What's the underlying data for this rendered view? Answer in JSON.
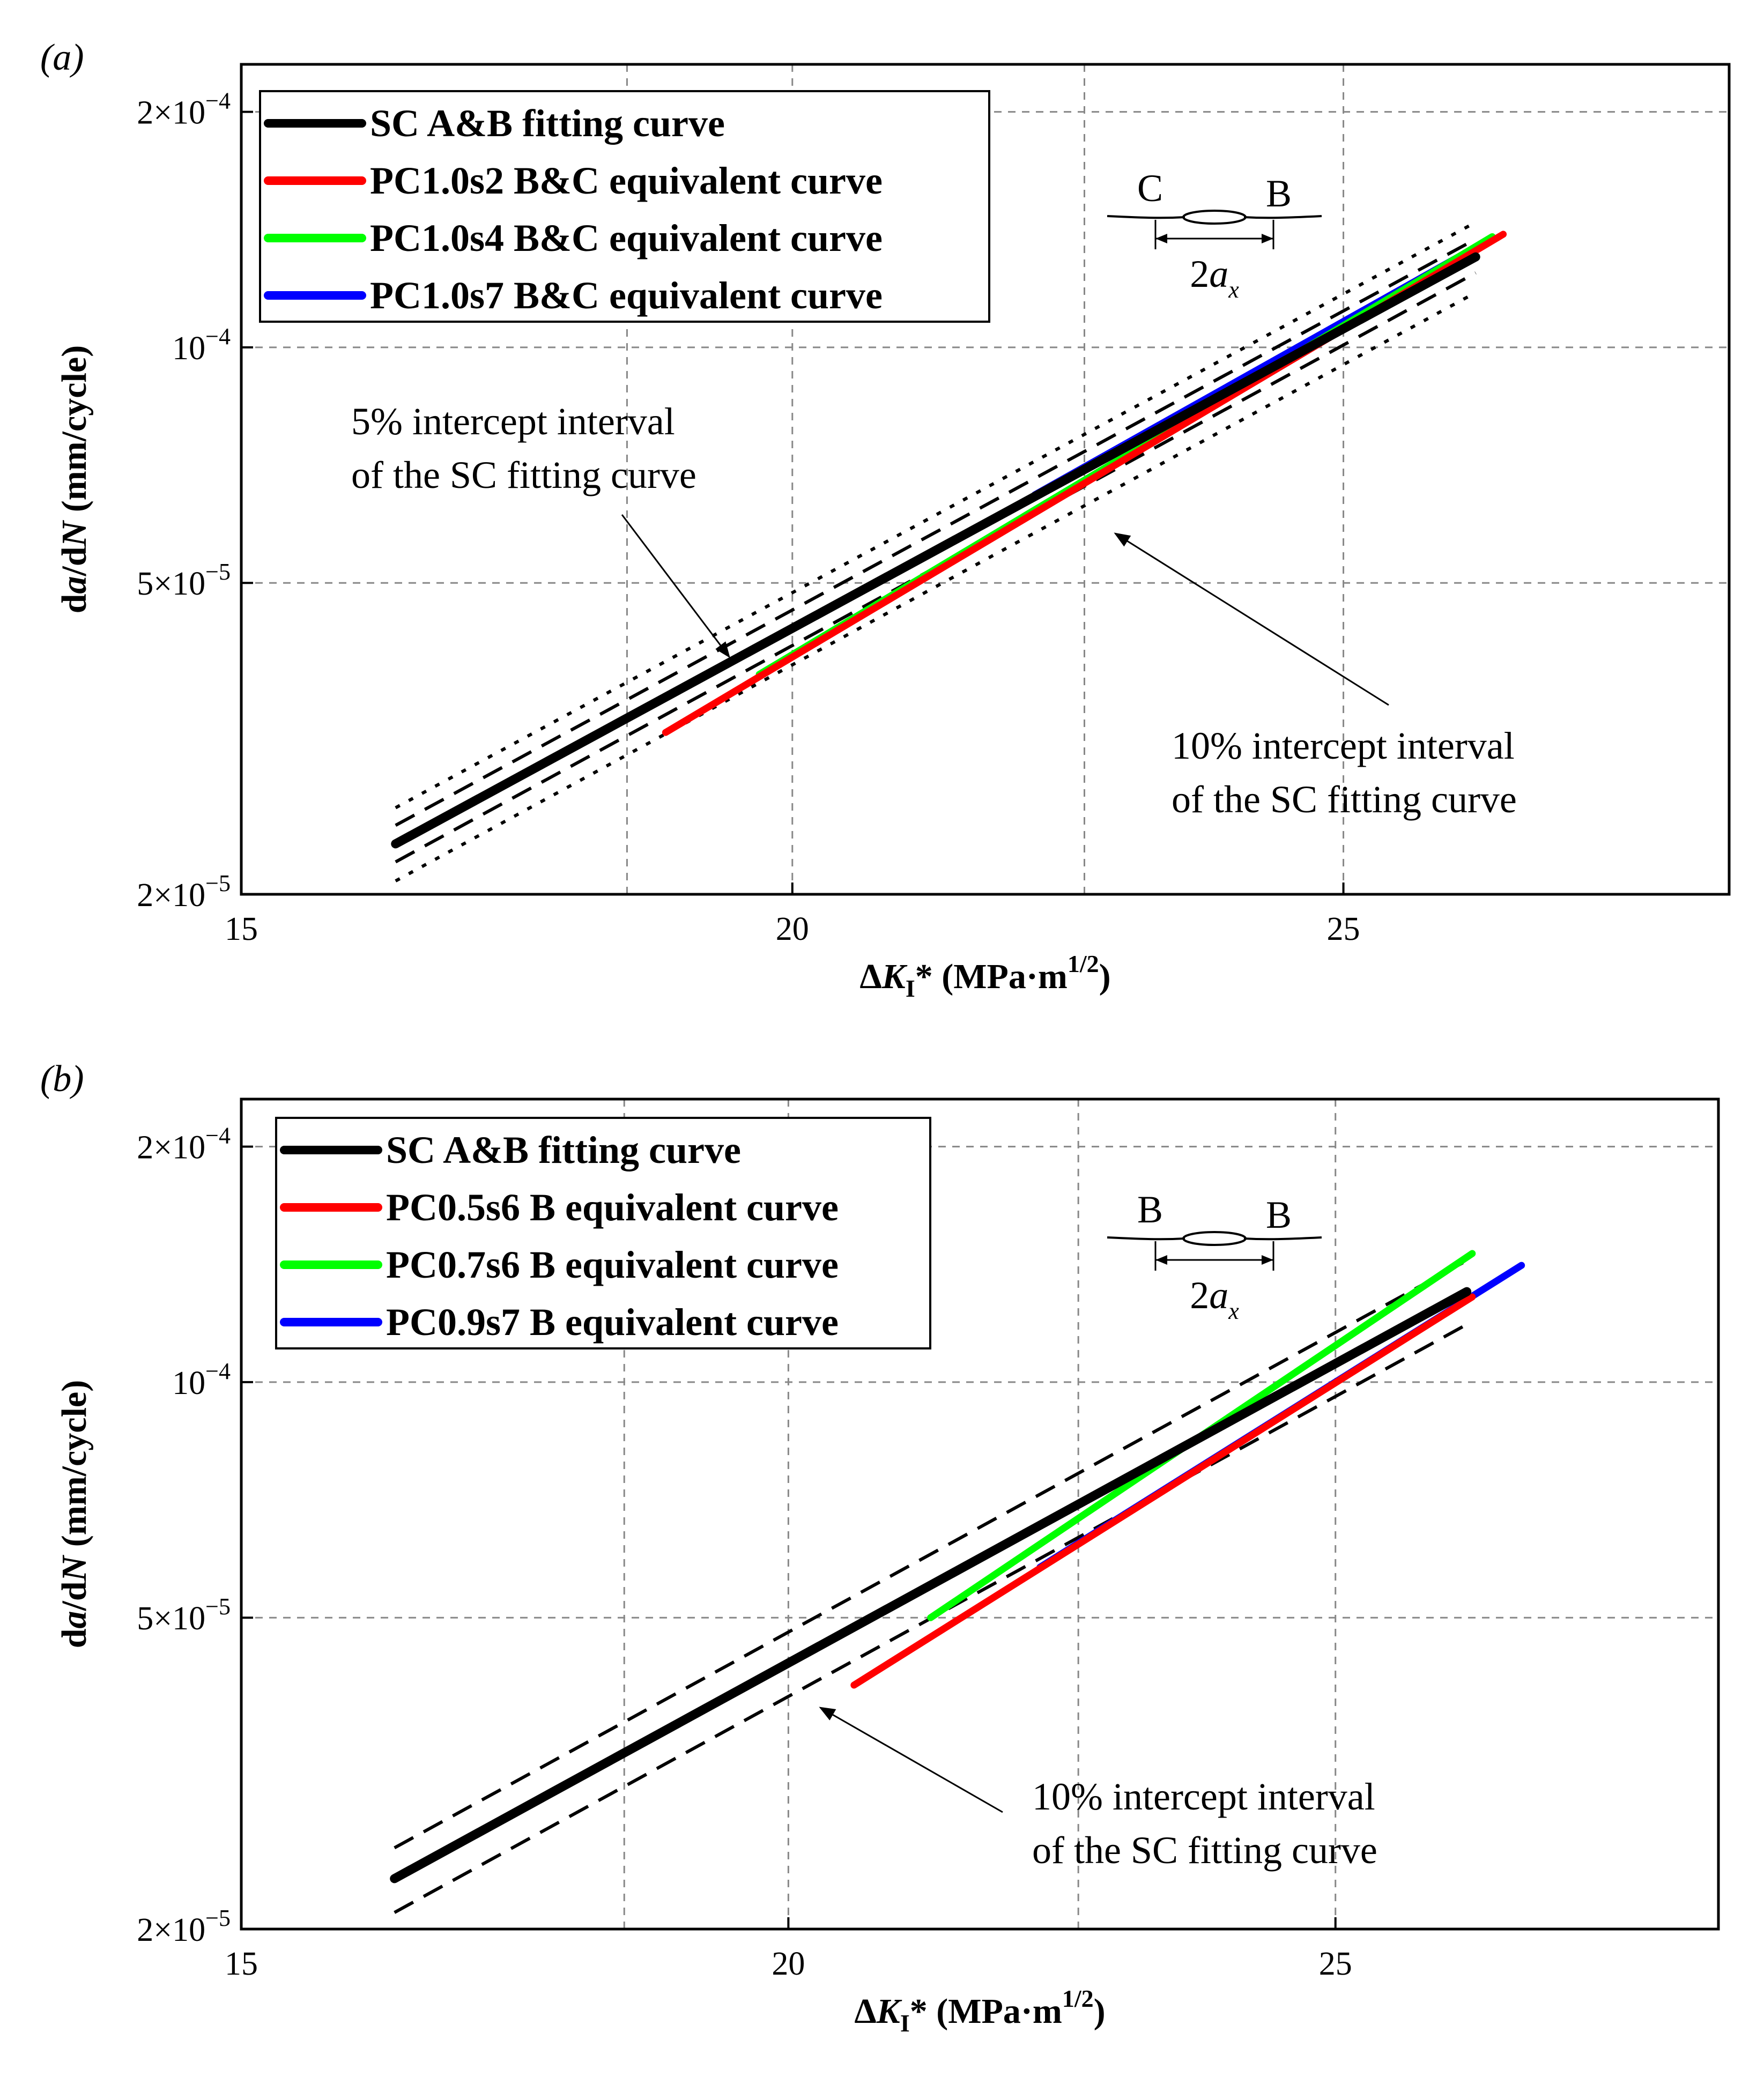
{
  "chart_data": [
    {
      "panel_label": "(a)",
      "type": "line",
      "x_scale": "linear",
      "y_scale": "log",
      "xlabel": "ΔK_I* (MPa·m^1/2)",
      "ylabel": "da/dN (mm/cycle)",
      "xlim": [
        15,
        28.5
      ],
      "ylim": [
        2e-05,
        0.00023
      ],
      "x_ticks": [
        15,
        20,
        25
      ],
      "y_ticks": [
        {
          "value": 2e-05,
          "mant": "2×10",
          "exp": "−5"
        },
        {
          "value": 5e-05,
          "mant": "5×10",
          "exp": "−5"
        },
        {
          "value": 0.0001,
          "mant": "10",
          "exp": "−4"
        },
        {
          "value": 0.0002,
          "mant": "2×10",
          "exp": "−4"
        }
      ],
      "grid_x": [
        18.5,
        20,
        22.65,
        25
      ],
      "grid_y": [
        5e-05,
        0.0001,
        0.0002
      ],
      "grid": true,
      "legend_position": "top-left",
      "series": [
        {
          "name": "SC A&B fitting curve",
          "color": "#000000",
          "style": "solid",
          "x": [
            16.4,
            26.2
          ],
          "y": [
            2.32e-05,
            0.0001305
          ]
        },
        {
          "name": "PC1.0s2 B&C equivalent curve",
          "color": "#ff0000",
          "style": "solid",
          "x": [
            18.85,
            26.45
          ],
          "y": [
            3.22e-05,
            0.0001395
          ]
        },
        {
          "name": "PC1.0s4 B&C equivalent curve",
          "color": "#00ff00",
          "style": "solid",
          "x": [
            19.7,
            26.35
          ],
          "y": [
            3.82e-05,
            0.0001385
          ]
        },
        {
          "name": "PC1.0s7 B&C equivalent curve",
          "color": "#0000ff",
          "style": "solid",
          "x": [
            22.2,
            26.25
          ],
          "y": [
            6.48e-05,
            0.0001355
          ]
        }
      ],
      "bands": [
        {
          "style": "dashed",
          "x": [
            16.4,
            26.2
          ],
          "y": [
            2.45e-05,
            0.0001375
          ]
        },
        {
          "style": "dashed",
          "x": [
            16.4,
            26.2
          ],
          "y": [
            2.2e-05,
            0.0001245
          ]
        },
        {
          "style": "dotted",
          "x": [
            16.4,
            26.2
          ],
          "y": [
            2.58e-05,
            0.0001445
          ]
        },
        {
          "style": "dotted",
          "x": [
            16.4,
            26.2
          ],
          "y": [
            2.08e-05,
            0.0001175
          ]
        }
      ],
      "annotations": [
        {
          "lines": [
            "5% intercept interval",
            "of the SC fitting curve"
          ]
        },
        {
          "lines": [
            "10% intercept interval",
            "of the SC fitting curve"
          ]
        }
      ],
      "inset": {
        "left": "C",
        "right": "B",
        "dim_base": "2a",
        "dim_sub": "x"
      }
    },
    {
      "panel_label": "(b)",
      "type": "line",
      "x_scale": "linear",
      "y_scale": "log",
      "xlabel": "ΔK_I* (MPa·m^1/2)",
      "ylabel": "da/dN (mm/cycle)",
      "xlim": [
        15,
        28.5
      ],
      "ylim": [
        2e-05,
        0.00023
      ],
      "x_ticks": [
        15,
        20,
        25
      ],
      "y_ticks": [
        {
          "value": 2e-05,
          "mant": "2×10",
          "exp": "−5"
        },
        {
          "value": 5e-05,
          "mant": "5×10",
          "exp": "−5"
        },
        {
          "value": 0.0001,
          "mant": "10",
          "exp": "−4"
        },
        {
          "value": 0.0002,
          "mant": "2×10",
          "exp": "−4"
        }
      ],
      "grid_x": [
        18.5,
        20,
        22.65,
        25
      ],
      "grid_y": [
        5e-05,
        0.0001,
        0.0002
      ],
      "grid": true,
      "legend_position": "top-left",
      "series": [
        {
          "name": "SC A&B fitting curve",
          "color": "#000000",
          "style": "solid",
          "x": [
            16.4,
            26.2
          ],
          "y": [
            2.32e-05,
            0.0001305
          ]
        },
        {
          "name": "PC0.5s6 B equivalent curve",
          "color": "#ff0000",
          "style": "solid",
          "x": [
            20.6,
            26.25
          ],
          "y": [
            4.1e-05,
            0.0001285
          ]
        },
        {
          "name": "PC0.7s6 B equivalent curve",
          "color": "#00ff00",
          "style": "solid",
          "x": [
            21.3,
            26.25
          ],
          "y": [
            5e-05,
            0.000146
          ]
        },
        {
          "name": "PC0.9s7 B equivalent curve",
          "color": "#0000ff",
          "style": "solid",
          "x": [
            22.3,
            26.7
          ],
          "y": [
            5.8e-05,
            0.000141
          ]
        }
      ],
      "bands": [
        {
          "style": "dashed",
          "x": [
            16.4,
            26.2
          ],
          "y": [
            2.54e-05,
            0.000143
          ]
        },
        {
          "style": "dashed",
          "x": [
            16.4,
            26.2
          ],
          "y": [
            2.1e-05,
            0.0001185
          ]
        }
      ],
      "annotations": [
        {
          "lines": [
            "10% intercept interval",
            "of the SC fitting curve"
          ]
        }
      ],
      "inset": {
        "left": "B",
        "right": "B",
        "dim_base": "2a",
        "dim_sub": "x"
      }
    }
  ]
}
